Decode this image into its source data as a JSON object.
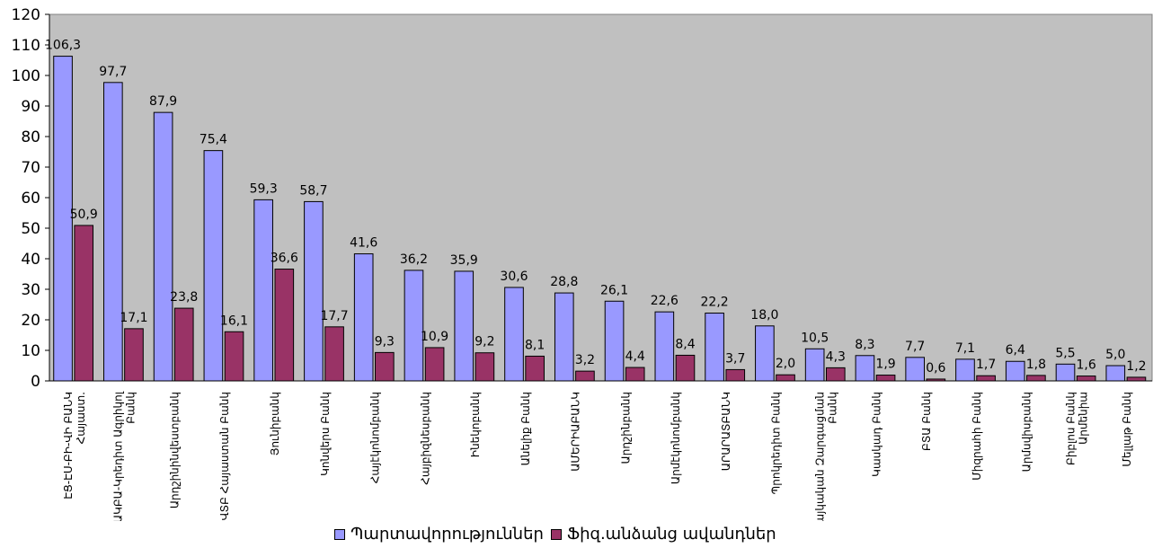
{
  "chart_data": {
    "type": "bar",
    "categories": [
      "ԷՑ-ԷՍ-ԲԻ-ՎԻ ԲԱՆԿ Հայաստ.",
      "ԱԿԲԱ-Կրեդիտ Ագրիկոլ Բանկ",
      "Արդշինինվեստբանկ",
      "ՎՏԲ Հայաստան Բանկ",
      "Յունիբանկ",
      "Կոնվերս Բանկ",
      "Հայէկոնոմբանկ",
      "Հայբիզնեսբանկ",
      "Ինեկոբանկ",
      "Անելիք Բանկ",
      "ԱՄԵՐԻԱԲԱՆԿ",
      "Արդշինբանկ",
      "Արմէկոնոմբանկ",
      "ԱՐԱՐԱՏԲԱՆԿ",
      "Պրոկրեդիտ Բանկ",
      "Հայկական Զարգացման Բանկ",
      "Կասկադ Բանկ",
      "ԲՏԱ Բանկ",
      "Միզրահի Բանկ",
      "Արմսվիսբանկ",
      "Բիբլոս Բանկ Արմենիա",
      "Մելլաթ Բանկ"
    ],
    "series": [
      {
        "name": "Պարտավորություններ",
        "color": "#9999ff",
        "values": [
          106.3,
          97.7,
          87.9,
          75.4,
          59.3,
          58.7,
          41.6,
          36.2,
          35.9,
          30.6,
          28.8,
          26.1,
          22.6,
          22.2,
          18.0,
          10.5,
          8.3,
          7.7,
          7.1,
          6.4,
          5.5,
          5.0
        ],
        "labels": [
          "106,3",
          "97,7",
          "87,9",
          "75,4",
          "59,3",
          "58,7",
          "41,6",
          "36,2",
          "35,9",
          "30,6",
          "28,8",
          "26,1",
          "22,6",
          "22,2",
          "18,0",
          "10,5",
          "8,3",
          "7,7",
          "7,1",
          "6,4",
          "5,5",
          "5,0"
        ]
      },
      {
        "name": "Ֆիզ.անձանց ավանդներ",
        "color": "#993366",
        "values": [
          50.9,
          17.1,
          23.8,
          16.1,
          36.6,
          17.7,
          9.3,
          10.9,
          9.2,
          8.1,
          3.2,
          4.4,
          8.4,
          3.7,
          2.0,
          4.3,
          1.9,
          0.6,
          1.7,
          1.8,
          1.6,
          1.2
        ],
        "labels": [
          "50,9",
          "17,1",
          "23,8",
          "16,1",
          "36,6",
          "17,7",
          "9,3",
          "10,9",
          "9,2",
          "8,1",
          "3,2",
          "4,4",
          "8,4",
          "3,7",
          "2,0",
          "4,3",
          "1,9",
          "0,6",
          "1,7",
          "1,8",
          "1,6",
          "1,2"
        ]
      }
    ],
    "ylim": [
      0,
      120
    ],
    "yticks": [
      0,
      10,
      20,
      30,
      40,
      50,
      60,
      70,
      80,
      90,
      100,
      110,
      120
    ],
    "plot_background": "#c0c0c0",
    "grid": false,
    "legend_position": "bottom-center",
    "title": "",
    "xlabel": "",
    "ylabel": ""
  }
}
